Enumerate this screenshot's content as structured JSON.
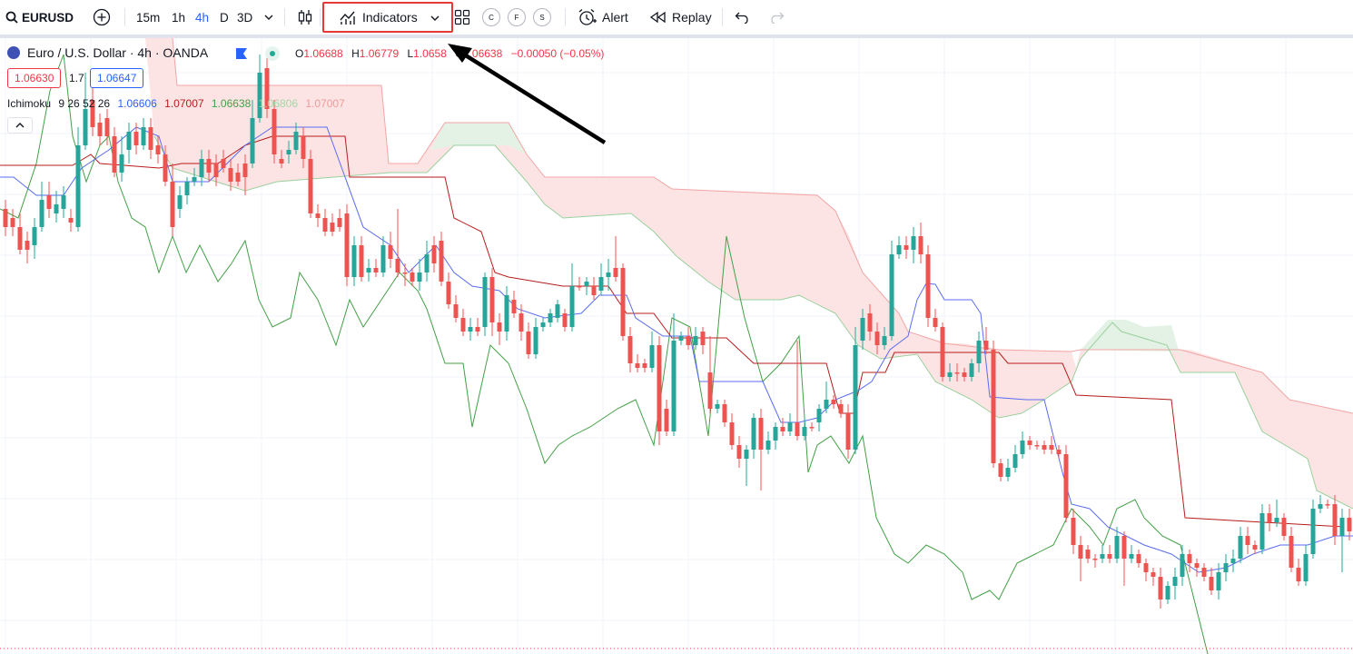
{
  "toolbar": {
    "symbol": "EURUSD",
    "timeframes": [
      "15m",
      "1h",
      "4h",
      "D",
      "3D"
    ],
    "active_timeframe": "4h",
    "indicators_label": "Indicators",
    "circle_buttons": [
      "C",
      "F",
      "S"
    ],
    "alert_label": "Alert",
    "replay_label": "Replay"
  },
  "legend": {
    "title": "Euro / U.S. Dollar · 4h · OANDA",
    "ohlc": [
      {
        "label": "O",
        "value": "1.06688"
      },
      {
        "label": "H",
        "value": "1.06779"
      },
      {
        "label": "L",
        "value": "1.0658"
      },
      {
        "label": "C",
        "value": "1.06638"
      }
    ],
    "change": "−0.00050 (−0.05%)",
    "sell_price": "1.06630",
    "spread": "1.7",
    "buy_price": "1.06647"
  },
  "ichimoku": {
    "name": "Ichimoku",
    "params": "9 26 52 26",
    "values": [
      {
        "value": "1.06606",
        "color": "#2962ff"
      },
      {
        "value": "1.07007",
        "color": "#b71c1c"
      },
      {
        "value": "1.06638",
        "color": "#43a047"
      },
      {
        "value": "1.06806",
        "color": "#a5d6a7"
      },
      {
        "value": "1.07007",
        "color": "#ef9a9a"
      }
    ]
  },
  "colors": {
    "up": "#26a69a",
    "down": "#ef5350",
    "accent": "#2962ff",
    "highlight": "#e53935",
    "conversion": "#2962ff",
    "base": "#b71c1c",
    "lagging": "#43a047",
    "cloud_bear": "#f8bbbb",
    "cloud_bull": "#c8e6c9"
  },
  "chart_data": {
    "type": "candlestick",
    "symbol": "EURUSD",
    "interval": "4h",
    "last_close": 1.06638,
    "cloud_top_right": 1.07007
  }
}
